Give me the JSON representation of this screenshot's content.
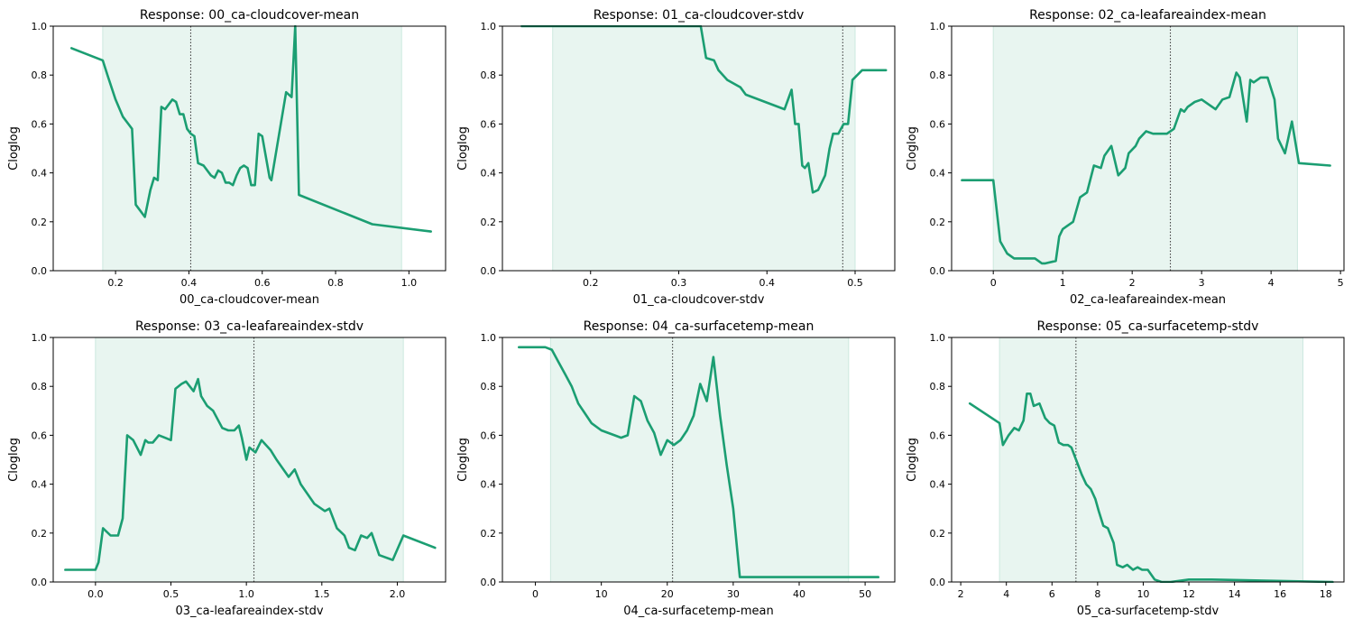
{
  "colors": {
    "line": "#1b9e72",
    "band": "#e8f5f0",
    "band_edge": "#cde9df",
    "axis": "#000000",
    "ref": "#444444"
  },
  "chart_data": [
    {
      "type": "line",
      "title": "Response: 00_ca-cloudcover-mean",
      "xlabel": "00_ca-cloudcover-mean",
      "ylabel": "Cloglog",
      "xlim": [
        0.03,
        1.1
      ],
      "ylim": [
        0,
        1
      ],
      "xticks": [
        0.2,
        0.4,
        0.6,
        0.8,
        1.0
      ],
      "xtick_labels": [
        "0.2",
        "0.4",
        "0.6",
        "0.8",
        "1.0"
      ],
      "yticks": [
        0,
        0.2,
        0.4,
        0.6,
        0.8,
        1.0
      ],
      "ytick_labels": [
        "0.0",
        "0.2",
        "0.4",
        "0.6",
        "0.8",
        "1.0"
      ],
      "band": [
        0.165,
        0.98
      ],
      "reference_x": 0.405,
      "grid": false,
      "x": [
        0.08,
        0.165,
        0.18,
        0.2,
        0.22,
        0.235,
        0.245,
        0.255,
        0.28,
        0.295,
        0.305,
        0.315,
        0.325,
        0.335,
        0.345,
        0.355,
        0.365,
        0.375,
        0.385,
        0.395,
        0.405,
        0.415,
        0.425,
        0.44,
        0.46,
        0.47,
        0.48,
        0.49,
        0.5,
        0.51,
        0.52,
        0.53,
        0.54,
        0.55,
        0.56,
        0.57,
        0.58,
        0.59,
        0.6,
        0.62,
        0.625,
        0.665,
        0.68,
        0.69,
        0.7,
        0.9,
        1.06
      ],
      "y": [
        0.91,
        0.86,
        0.79,
        0.7,
        0.63,
        0.6,
        0.58,
        0.27,
        0.22,
        0.33,
        0.38,
        0.37,
        0.67,
        0.66,
        0.68,
        0.7,
        0.69,
        0.64,
        0.64,
        0.58,
        0.56,
        0.55,
        0.44,
        0.43,
        0.39,
        0.38,
        0.41,
        0.4,
        0.36,
        0.36,
        0.35,
        0.39,
        0.42,
        0.43,
        0.42,
        0.35,
        0.35,
        0.56,
        0.55,
        0.38,
        0.37,
        0.73,
        0.71,
        1.0,
        0.31,
        0.19,
        0.16
      ]
    },
    {
      "type": "line",
      "title": "Response: 01_ca-cloudcover-stdv",
      "xlabel": "01_ca-cloudcover-stdv",
      "ylabel": "Cloglog",
      "xlim": [
        0.1,
        0.545
      ],
      "ylim": [
        0,
        1
      ],
      "xticks": [
        0.2,
        0.3,
        0.4,
        0.5
      ],
      "xtick_labels": [
        "0.2",
        "0.3",
        "0.4",
        "0.5"
      ],
      "yticks": [
        0,
        0.2,
        0.4,
        0.6,
        0.8,
        1.0
      ],
      "ytick_labels": [
        "0.0",
        "0.2",
        "0.4",
        "0.6",
        "0.8",
        "1.0"
      ],
      "band": [
        0.157,
        0.5
      ],
      "reference_x": 0.486,
      "grid": false,
      "x": [
        0.122,
        0.157,
        0.325,
        0.331,
        0.34,
        0.345,
        0.355,
        0.37,
        0.376,
        0.42,
        0.428,
        0.432,
        0.436,
        0.44,
        0.443,
        0.447,
        0.452,
        0.458,
        0.462,
        0.466,
        0.471,
        0.475,
        0.481,
        0.487,
        0.492,
        0.497,
        0.508,
        0.535
      ],
      "y": [
        1.0,
        1.0,
        1.0,
        0.87,
        0.86,
        0.82,
        0.78,
        0.75,
        0.72,
        0.66,
        0.74,
        0.6,
        0.6,
        0.43,
        0.42,
        0.44,
        0.32,
        0.33,
        0.36,
        0.39,
        0.5,
        0.56,
        0.56,
        0.6,
        0.6,
        0.78,
        0.82,
        0.82
      ]
    },
    {
      "type": "line",
      "title": "Response: 02_ca-leafareaindex-mean",
      "xlabel": "02_ca-leafareaindex-mean",
      "ylabel": "Cloglog",
      "xlim": [
        -0.6,
        5.05
      ],
      "ylim": [
        0,
        1
      ],
      "xticks": [
        0,
        1,
        2,
        3,
        4,
        5
      ],
      "xtick_labels": [
        "0",
        "1",
        "2",
        "3",
        "4",
        "5"
      ],
      "yticks": [
        0,
        0.2,
        0.4,
        0.6,
        0.8,
        1.0
      ],
      "ytick_labels": [
        "0.0",
        "0.2",
        "0.4",
        "0.6",
        "0.8",
        "1.0"
      ],
      "band": [
        0.0,
        4.38
      ],
      "reference_x": 2.55,
      "grid": false,
      "x": [
        -0.45,
        0.0,
        0.1,
        0.2,
        0.3,
        0.4,
        0.6,
        0.7,
        0.75,
        0.9,
        0.95,
        1.0,
        1.05,
        1.15,
        1.25,
        1.35,
        1.45,
        1.55,
        1.6,
        1.7,
        1.8,
        1.9,
        1.95,
        2.05,
        2.1,
        2.2,
        2.3,
        2.4,
        2.5,
        2.6,
        2.7,
        2.75,
        2.8,
        2.9,
        3.0,
        3.1,
        3.2,
        3.3,
        3.4,
        3.5,
        3.55,
        3.65,
        3.7,
        3.75,
        3.85,
        3.95,
        4.05,
        4.1,
        4.2,
        4.3,
        4.4,
        4.85
      ],
      "y": [
        0.37,
        0.37,
        0.12,
        0.07,
        0.05,
        0.05,
        0.05,
        0.03,
        0.03,
        0.04,
        0.14,
        0.17,
        0.18,
        0.2,
        0.3,
        0.32,
        0.43,
        0.42,
        0.47,
        0.51,
        0.39,
        0.42,
        0.48,
        0.51,
        0.54,
        0.57,
        0.56,
        0.56,
        0.56,
        0.58,
        0.66,
        0.65,
        0.67,
        0.69,
        0.7,
        0.68,
        0.66,
        0.7,
        0.71,
        0.81,
        0.79,
        0.61,
        0.78,
        0.77,
        0.79,
        0.79,
        0.7,
        0.54,
        0.48,
        0.61,
        0.44,
        0.43
      ]
    },
    {
      "type": "line",
      "title": "Response: 03_ca-leafareaindex-stdv",
      "xlabel": "03_ca-leafareaindex-stdv",
      "ylabel": "Cloglog",
      "xlim": [
        -0.28,
        2.32
      ],
      "ylim": [
        0,
        1
      ],
      "xticks": [
        0.0,
        0.5,
        1.0,
        1.5,
        2.0
      ],
      "xtick_labels": [
        "0.0",
        "0.5",
        "1.0",
        "1.5",
        "2.0"
      ],
      "yticks": [
        0,
        0.2,
        0.4,
        0.6,
        0.8,
        1.0
      ],
      "ytick_labels": [
        "0.0",
        "0.2",
        "0.4",
        "0.6",
        "0.8",
        "1.0"
      ],
      "band": [
        0.0,
        2.04
      ],
      "reference_x": 1.05,
      "grid": false,
      "x": [
        -0.2,
        0.0,
        0.02,
        0.05,
        0.1,
        0.15,
        0.18,
        0.21,
        0.25,
        0.3,
        0.33,
        0.35,
        0.38,
        0.42,
        0.46,
        0.5,
        0.53,
        0.57,
        0.6,
        0.65,
        0.68,
        0.7,
        0.74,
        0.78,
        0.84,
        0.88,
        0.92,
        0.95,
        0.97,
        1.0,
        1.02,
        1.06,
        1.1,
        1.16,
        1.2,
        1.28,
        1.32,
        1.36,
        1.45,
        1.52,
        1.55,
        1.6,
        1.65,
        1.68,
        1.72,
        1.76,
        1.8,
        1.83,
        1.88,
        1.97,
        2.04,
        2.25
      ],
      "y": [
        0.05,
        0.05,
        0.08,
        0.22,
        0.19,
        0.19,
        0.26,
        0.6,
        0.58,
        0.52,
        0.58,
        0.57,
        0.57,
        0.6,
        0.59,
        0.58,
        0.79,
        0.81,
        0.82,
        0.78,
        0.83,
        0.76,
        0.72,
        0.7,
        0.63,
        0.62,
        0.62,
        0.64,
        0.59,
        0.5,
        0.55,
        0.53,
        0.58,
        0.54,
        0.5,
        0.43,
        0.46,
        0.4,
        0.32,
        0.29,
        0.3,
        0.22,
        0.19,
        0.14,
        0.13,
        0.19,
        0.18,
        0.2,
        0.11,
        0.09,
        0.19,
        0.14
      ]
    },
    {
      "type": "line",
      "title": "Response: 04_ca-surfacetemp-mean",
      "xlabel": "04_ca-surfacetemp-mean",
      "ylabel": "Cloglog",
      "xlim": [
        -5.0,
        54.5
      ],
      "ylim": [
        0,
        1
      ],
      "xticks": [
        0,
        10,
        20,
        30,
        40,
        50
      ],
      "xtick_labels": [
        "0",
        "10",
        "20",
        "30",
        "40",
        "50"
      ],
      "yticks": [
        0,
        0.2,
        0.4,
        0.6,
        0.8,
        1.0
      ],
      "ytick_labels": [
        "0.0",
        "0.2",
        "0.4",
        "0.6",
        "0.8",
        "1.0"
      ],
      "band": [
        2.3,
        47.5
      ],
      "reference_x": 20.8,
      "grid": false,
      "x": [
        -2.5,
        1.5,
        2.5,
        3.5,
        4.5,
        5.5,
        6.5,
        7.5,
        8.5,
        10,
        12,
        13,
        14,
        15,
        16,
        17,
        18,
        19,
        20,
        21,
        22,
        23,
        24,
        25,
        26,
        27,
        28,
        29,
        30,
        31,
        32,
        52
      ],
      "y": [
        0.96,
        0.96,
        0.95,
        0.9,
        0.85,
        0.8,
        0.73,
        0.69,
        0.65,
        0.62,
        0.6,
        0.59,
        0.6,
        0.76,
        0.74,
        0.66,
        0.61,
        0.52,
        0.58,
        0.56,
        0.58,
        0.62,
        0.68,
        0.81,
        0.74,
        0.92,
        0.68,
        0.48,
        0.3,
        0.02,
        0.02,
        0.02
      ]
    },
    {
      "type": "line",
      "title": "Response: 05_ca-surfacetemp-stdv",
      "xlabel": "05_ca-surfacetemp-stdv",
      "ylabel": "Cloglog",
      "xlim": [
        1.6,
        18.8
      ],
      "ylim": [
        0,
        1
      ],
      "xticks": [
        2,
        4,
        6,
        8,
        10,
        12,
        14,
        16,
        18
      ],
      "xtick_labels": [
        "2",
        "4",
        "6",
        "8",
        "10",
        "12",
        "14",
        "16",
        "18"
      ],
      "yticks": [
        0,
        0.2,
        0.4,
        0.6,
        0.8,
        1.0
      ],
      "ytick_labels": [
        "0.0",
        "0.2",
        "0.4",
        "0.6",
        "0.8",
        "1.0"
      ],
      "band": [
        3.7,
        17.0
      ],
      "reference_x": 7.05,
      "grid": false,
      "x": [
        2.4,
        3.7,
        3.85,
        4.1,
        4.35,
        4.55,
        4.75,
        4.9,
        5.05,
        5.2,
        5.45,
        5.7,
        5.9,
        6.1,
        6.3,
        6.5,
        6.7,
        6.85,
        7.3,
        7.5,
        7.7,
        7.9,
        8.05,
        8.25,
        8.45,
        8.7,
        8.85,
        9.1,
        9.3,
        9.55,
        9.75,
        9.95,
        10.2,
        10.5,
        10.8,
        11.2,
        12.0,
        13.0,
        18.3
      ],
      "y": [
        0.73,
        0.65,
        0.56,
        0.6,
        0.63,
        0.62,
        0.66,
        0.77,
        0.77,
        0.72,
        0.73,
        0.67,
        0.65,
        0.64,
        0.57,
        0.56,
        0.56,
        0.55,
        0.44,
        0.4,
        0.38,
        0.34,
        0.29,
        0.23,
        0.22,
        0.16,
        0.07,
        0.06,
        0.07,
        0.05,
        0.06,
        0.05,
        0.05,
        0.01,
        0.0,
        0.0,
        0.01,
        0.01,
        0.0
      ]
    }
  ]
}
